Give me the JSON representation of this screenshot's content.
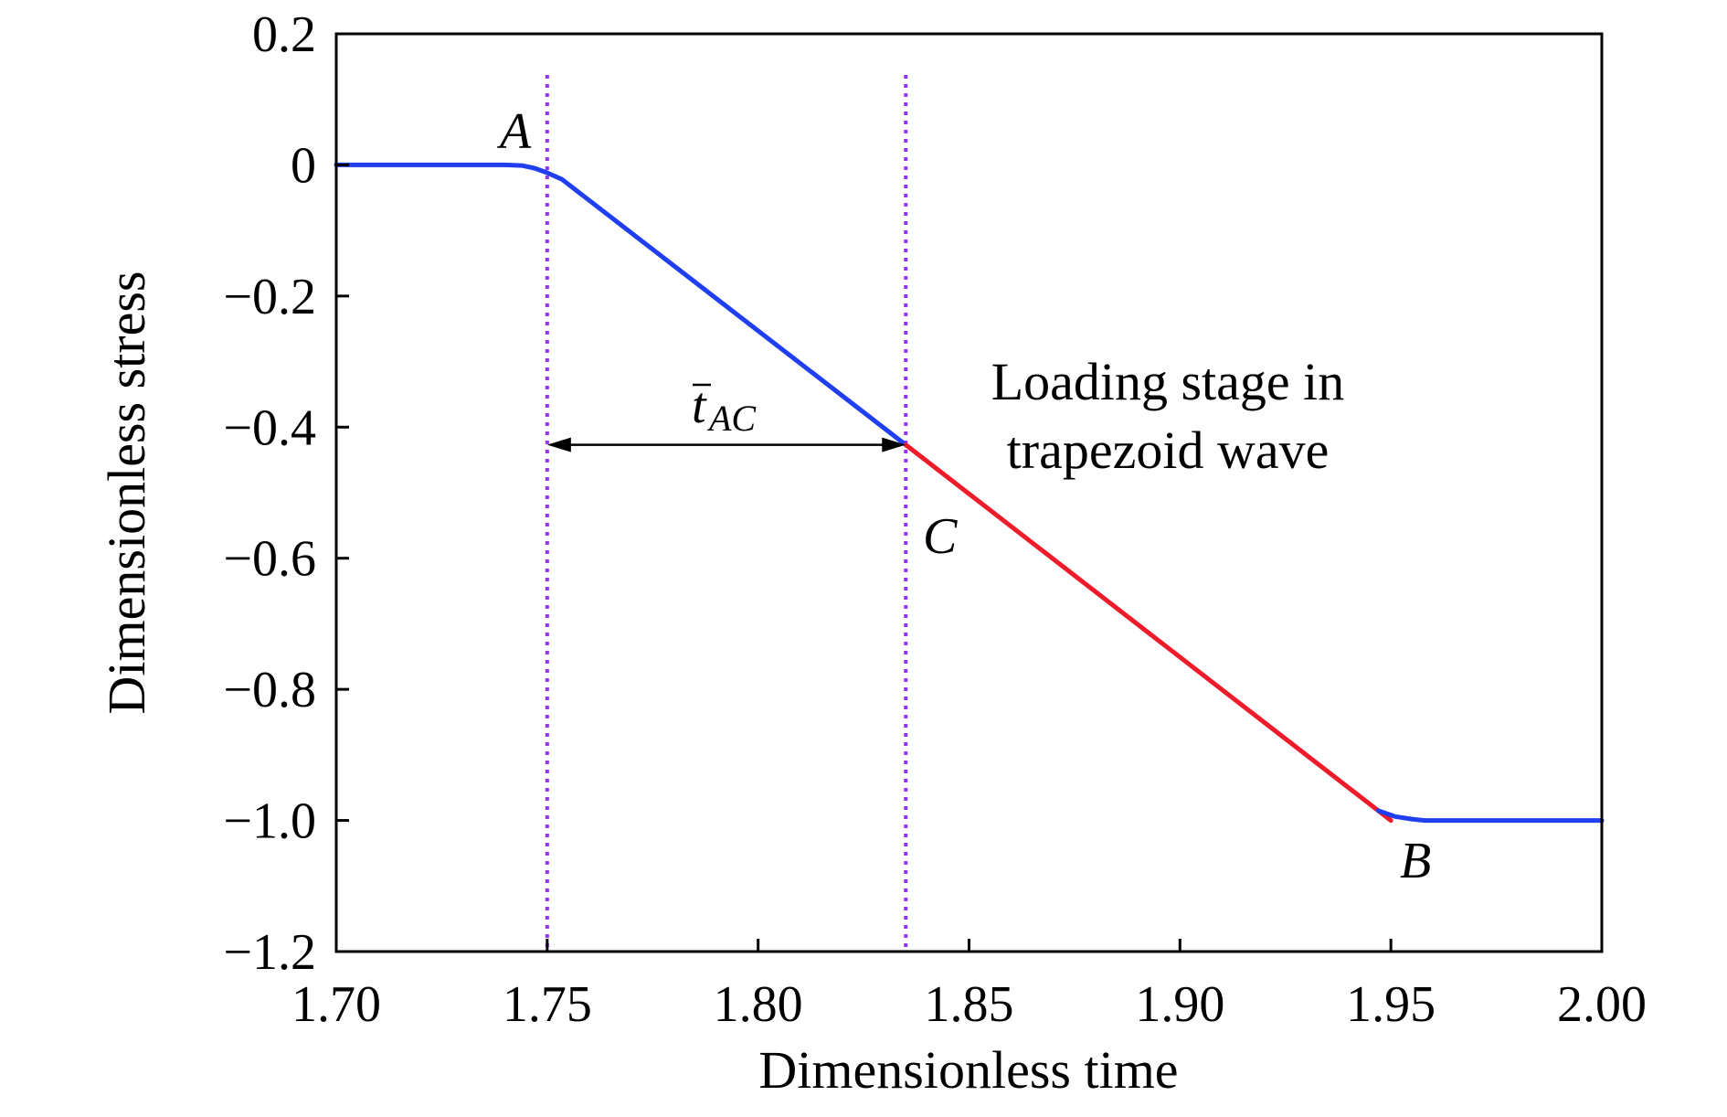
{
  "chart_data": {
    "type": "line",
    "xlabel": "Dimensionless time",
    "ylabel": "Dimensionless stress",
    "xlim": [
      1.7,
      2.0
    ],
    "ylim": [
      -1.2,
      0.2
    ],
    "xticks": [
      "1.70",
      "1.75",
      "1.80",
      "1.85",
      "1.90",
      "1.95",
      "2.00"
    ],
    "yticks": [
      "0.2",
      "0",
      "−0.2",
      "−0.4",
      "−0.6",
      "−0.8",
      "−1.0",
      "−1.2"
    ],
    "grid": false,
    "series": [
      {
        "color": "#1f3ff0",
        "x": [
          1.7,
          1.74,
          1.744,
          1.747,
          1.75,
          1.7535,
          1.835
        ],
        "y": [
          0.0,
          0.0,
          -0.001,
          -0.005,
          -0.012,
          -0.022,
          -0.427
        ]
      },
      {
        "color": "#ee1c2a",
        "x": [
          1.835,
          1.95
        ],
        "y": [
          -0.427,
          -1.0
        ]
      },
      {
        "color": "#1f3ff0",
        "x": [
          1.947,
          1.951,
          1.955,
          1.958,
          2.0
        ],
        "y": [
          -0.985,
          -0.994,
          -0.998,
          -1.0,
          -1.0
        ]
      }
    ],
    "reference_lines": [
      {
        "x": 1.75,
        "color": "#9b30ff",
        "style": "dotted"
      },
      {
        "x": 1.835,
        "color": "#9b30ff",
        "style": "dotted"
      }
    ],
    "interval_arrow": {
      "x_from": 1.75,
      "x_to": 1.835,
      "y": -0.427
    },
    "annotations": {
      "point_a": "A",
      "point_b": "B",
      "point_c": "C",
      "interval_symbol": "t",
      "interval_subscript": "AC",
      "note_line1": "Loading stage in",
      "note_line2": "trapezoid wave"
    }
  }
}
